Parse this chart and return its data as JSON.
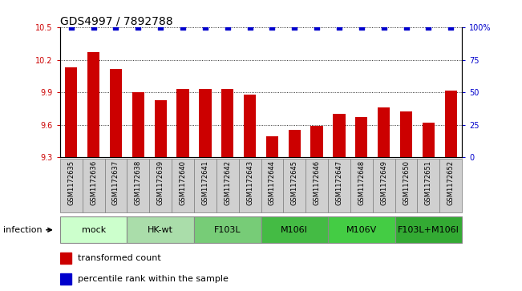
{
  "title": "GDS4997 / 7892788",
  "samples": [
    "GSM1172635",
    "GSM1172636",
    "GSM1172637",
    "GSM1172638",
    "GSM1172639",
    "GSM1172640",
    "GSM1172641",
    "GSM1172642",
    "GSM1172643",
    "GSM1172644",
    "GSM1172645",
    "GSM1172646",
    "GSM1172647",
    "GSM1172648",
    "GSM1172649",
    "GSM1172650",
    "GSM1172651",
    "GSM1172652"
  ],
  "bar_values": [
    10.13,
    10.27,
    10.12,
    9.9,
    9.83,
    9.93,
    9.93,
    9.93,
    9.88,
    9.49,
    9.55,
    9.59,
    9.7,
    9.67,
    9.76,
    9.72,
    9.62,
    9.92
  ],
  "percentile_values": [
    100,
    100,
    100,
    100,
    100,
    100,
    100,
    100,
    100,
    100,
    100,
    100,
    100,
    100,
    100,
    100,
    100,
    100
  ],
  "ylim_left": [
    9.3,
    10.5
  ],
  "ylim_right": [
    0,
    100
  ],
  "yticks_left": [
    9.3,
    9.6,
    9.9,
    10.2,
    10.5
  ],
  "yticks_right": [
    0,
    25,
    50,
    75,
    100
  ],
  "bar_color": "#cc0000",
  "percentile_color": "#0000cc",
  "bar_width": 0.55,
  "groups": [
    {
      "label": "mock",
      "start": 0,
      "end": 3,
      "color": "#ccffcc"
    },
    {
      "label": "HK-wt",
      "start": 3,
      "end": 6,
      "color": "#aaddaa"
    },
    {
      "label": "F103L",
      "start": 6,
      "end": 9,
      "color": "#77cc77"
    },
    {
      "label": "M106I",
      "start": 9,
      "end": 12,
      "color": "#44bb44"
    },
    {
      "label": "M106V",
      "start": 12,
      "end": 15,
      "color": "#44cc44"
    },
    {
      "label": "F103L+M106I",
      "start": 15,
      "end": 18,
      "color": "#33aa33"
    }
  ],
  "xlabel_infection": "infection",
  "legend_bar_label": "transformed count",
  "legend_pct_label": "percentile rank within the sample",
  "title_fontsize": 10,
  "tick_fontsize": 7,
  "sample_tick_fontsize": 6,
  "group_label_fontsize": 8,
  "sample_cell_color": "#d0d0d0",
  "sample_cell_edge_color": "#888888"
}
